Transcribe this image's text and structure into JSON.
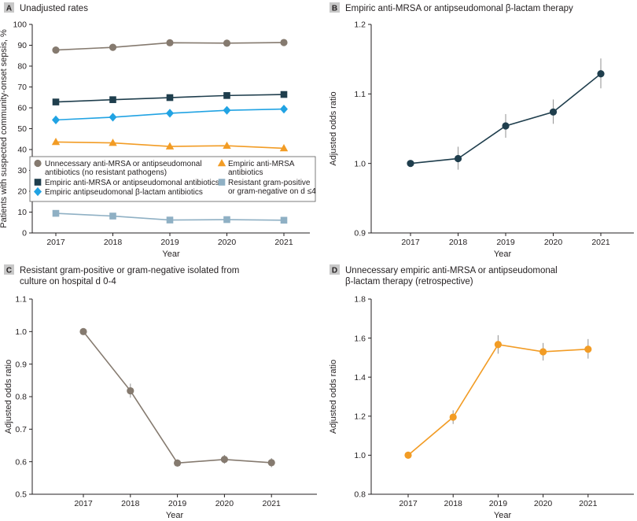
{
  "colors": {
    "gray": "#857a6f",
    "navy": "#1f3e4d",
    "cyan": "#21a3e3",
    "orange": "#f29c25",
    "steel": "#8fb0c4",
    "axis": "#231f20",
    "errbar": "#9a9a9a",
    "letterbox": "#c8c8c8"
  },
  "chart_data": [
    {
      "panel": "A",
      "type": "line",
      "title": "Unadjusted rates",
      "xlabel": "Year",
      "ylabel": "Patients with suspected community-onset sepsis, %",
      "x": [
        2017,
        2018,
        2019,
        2020,
        2021
      ],
      "x_ticks": [
        "2017",
        "2018",
        "2019",
        "2020",
        "2021"
      ],
      "ylim": [
        0,
        100
      ],
      "y_ticks": [
        "0",
        "10",
        "20",
        "30",
        "40",
        "50",
        "60",
        "70",
        "80",
        "90",
        "100"
      ],
      "legend_position": "center",
      "series": [
        {
          "name": "Unnecessary anti-MRSA or antipseudomonal antibiotics (no resistant pathogens)",
          "legend_lines": [
            "Unnecessary anti-MRSA or antipseudomonal",
            "antibiotics (no resistant pathogens)"
          ],
          "marker": "circle",
          "color_key": "gray",
          "values": [
            87.7,
            89.0,
            91.2,
            91.0,
            91.3
          ]
        },
        {
          "name": "Empiric anti-MRSA antibiotics",
          "legend_lines": [
            "Empiric anti-MRSA",
            "antibiotics"
          ],
          "marker": "triangle",
          "color_key": "orange",
          "values": [
            43.6,
            43.2,
            41.5,
            41.8,
            40.6
          ]
        },
        {
          "name": "Empiric anti-MRSA or antipseudomonal antibiotics",
          "legend_lines": [
            "Empiric anti-MRSA or antipseudomonal antibiotics"
          ],
          "marker": "square",
          "color_key": "navy",
          "values": [
            62.8,
            63.9,
            64.9,
            65.9,
            66.4
          ]
        },
        {
          "name": "Resistant gram-positive or gram-negative on d ≤4",
          "legend_lines": [
            "Resistant gram-positive",
            "or gram-negative on d ≤4"
          ],
          "marker": "square",
          "color_key": "steel",
          "values": [
            9.4,
            8.1,
            6.2,
            6.4,
            6.1
          ]
        },
        {
          "name": "Empiric antipseudomonal β-lactam antibiotics",
          "legend_lines": [
            "Empiric antipseudomonal β-lactam antibiotics"
          ],
          "marker": "diamond",
          "color_key": "cyan",
          "values": [
            54.2,
            55.5,
            57.4,
            58.8,
            59.4
          ]
        }
      ]
    },
    {
      "panel": "B",
      "type": "line",
      "title": "Empiric anti-MRSA or antipseudomonal β-lactam therapy",
      "title_lines": [
        "Empiric anti-MRSA or antipseudomonal β-lactam therapy"
      ],
      "xlabel": "Year",
      "ylabel": "Adjusted odds ratio",
      "x": [
        2017,
        2018,
        2019,
        2020,
        2021
      ],
      "x_ticks": [
        "2017",
        "2018",
        "2019",
        "2020",
        "2021"
      ],
      "ylim": [
        0.9,
        1.2
      ],
      "y_ticks": [
        "0.9",
        "1.0",
        "1.1",
        "1.2"
      ],
      "color_key": "navy",
      "values": [
        1.0,
        1.007,
        1.054,
        1.074,
        1.129
      ],
      "ci_lower": [
        1.0,
        0.991,
        1.037,
        1.057,
        1.108
      ],
      "ci_upper": [
        1.0,
        1.024,
        1.071,
        1.092,
        1.151
      ]
    },
    {
      "panel": "C",
      "type": "line",
      "title": "Resistant gram-positive or gram-negative isolated from culture on hospital d 0-4",
      "title_lines": [
        "Resistant gram-positive or gram-negative isolated from",
        "culture on hospital d 0-4"
      ],
      "xlabel": "Year",
      "ylabel": "Adjusted odds ratio",
      "x": [
        2017,
        2018,
        2019,
        2020,
        2021
      ],
      "x_ticks": [
        "2017",
        "2018",
        "2019",
        "2020",
        "2021"
      ],
      "ylim": [
        0.5,
        1.1
      ],
      "y_ticks": [
        "0.5",
        "0.6",
        "0.7",
        "0.8",
        "0.9",
        "1.0",
        "1.1"
      ],
      "color_key": "gray",
      "values": [
        1.0,
        0.818,
        0.596,
        0.607,
        0.597
      ],
      "ci_lower": [
        1.0,
        0.797,
        0.585,
        0.594,
        0.583
      ],
      "ci_upper": [
        1.0,
        0.84,
        0.607,
        0.621,
        0.611
      ]
    },
    {
      "panel": "D",
      "type": "line",
      "title": "Unnecessary empiric anti-MRSA or antipseudomonal β-lactam therapy (retrospective)",
      "title_lines": [
        "Unnecessary empiric anti-MRSA or antipseudomonal",
        "β-lactam therapy (retrospective)"
      ],
      "xlabel": "Year",
      "ylabel": "Adjusted odds ratio",
      "x": [
        2017,
        2018,
        2019,
        2020,
        2021
      ],
      "x_ticks": [
        "2017",
        "2018",
        "2019",
        "2020",
        "2021"
      ],
      "ylim": [
        0.8,
        1.8
      ],
      "y_ticks": [
        "0.8",
        "1.0",
        "1.2",
        "1.4",
        "1.6",
        "1.8"
      ],
      "color_key": "orange",
      "values": [
        1.0,
        1.195,
        1.567,
        1.53,
        1.543
      ],
      "ci_lower": [
        1.0,
        1.16,
        1.52,
        1.485,
        1.495
      ],
      "ci_upper": [
        1.0,
        1.23,
        1.615,
        1.575,
        1.595
      ]
    }
  ]
}
